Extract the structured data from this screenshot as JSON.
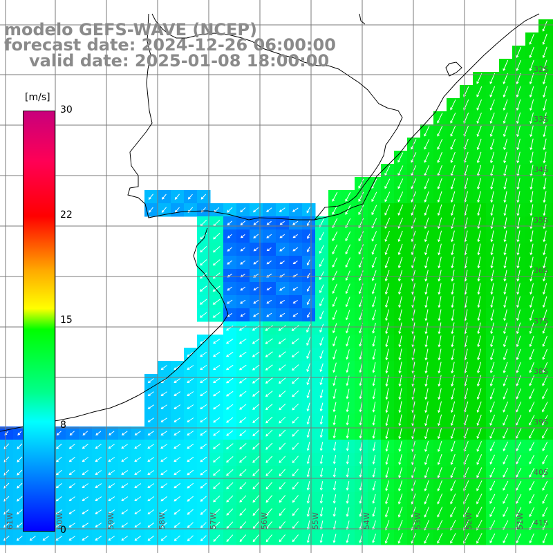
{
  "header": {
    "line1": "modelo GEFS-WAVE (NCEP)",
    "line2": "forecast date: 2024-12-26 06:00:00",
    "line3": "valid date: 2025-01-08 18:00:00"
  },
  "colorbar": {
    "unit": "[m/s]",
    "ticks": [
      "30",
      "22",
      "15",
      "8",
      "0"
    ],
    "colors": [
      "#0000ff",
      "#00a8ff",
      "#00ffff",
      "#00ff8c",
      "#00ff00",
      "#ffff00",
      "#ffaa00",
      "#ff0000",
      "#ff0055",
      "#c8007c"
    ]
  },
  "lat_labels": [
    "32S",
    "33S",
    "34S",
    "35S",
    "36S",
    "37S",
    "38S",
    "39S",
    "40S",
    "41S"
  ],
  "lon_labels": [
    "61W",
    "60W",
    "59W",
    "58W",
    "57W",
    "56W",
    "55W",
    "54W",
    "53W",
    "52W",
    "51W"
  ]
}
